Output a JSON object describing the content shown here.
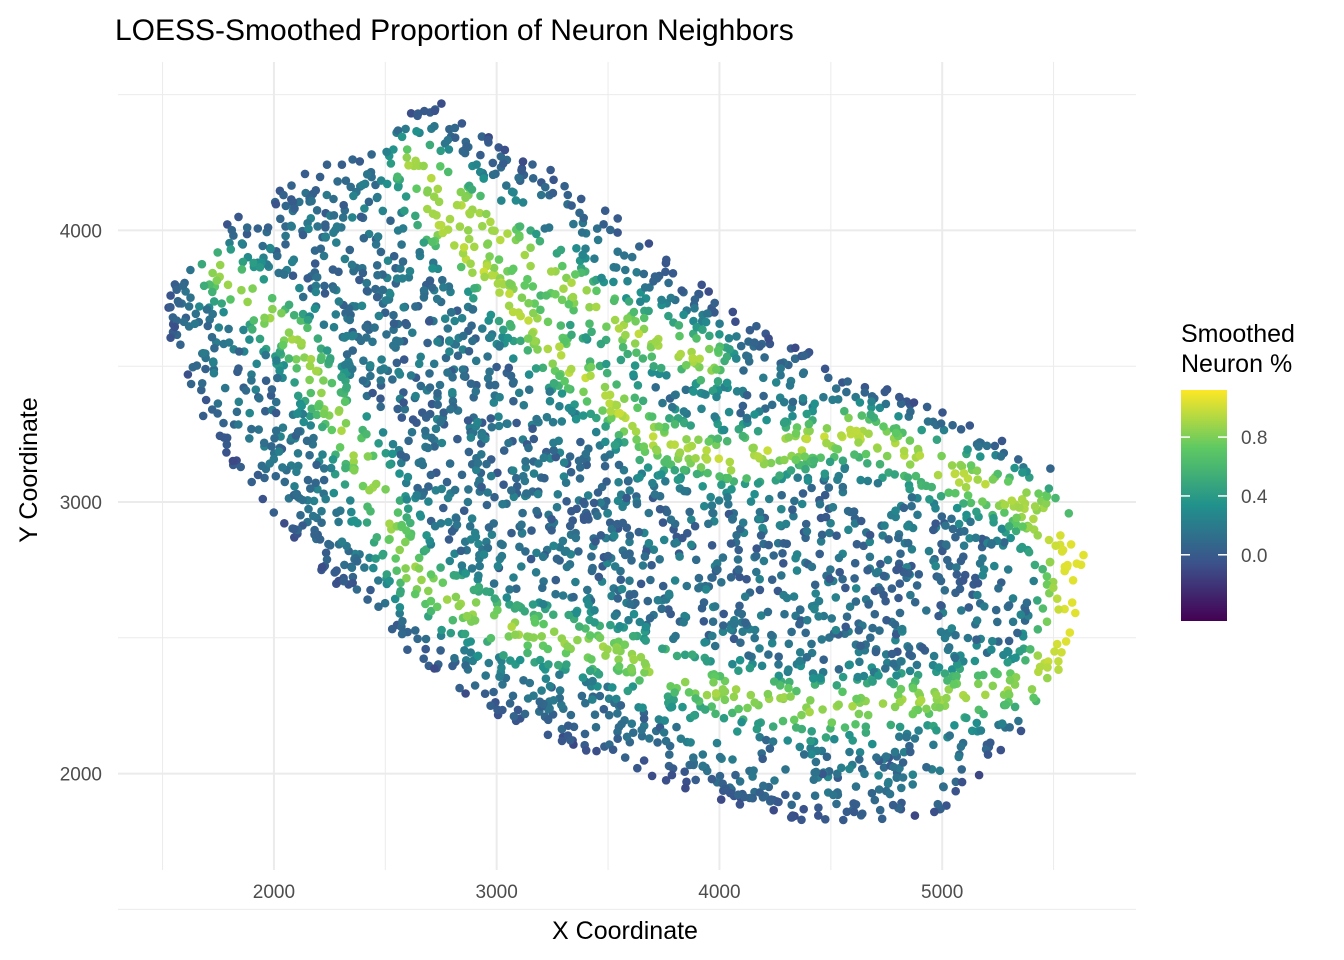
{
  "chart_data": {
    "type": "scatter",
    "title": "LOESS-Smoothed Proportion of Neuron Neighbors",
    "xlabel": "X Coordinate",
    "ylabel": "Y Coordinate",
    "xlim": [
      1300,
      5870
    ],
    "ylim": [
      1645,
      4620
    ],
    "x_ticks": [
      2000,
      3000,
      4000,
      5000
    ],
    "y_ticks": [
      2000,
      3000,
      4000
    ],
    "x_tick_labels": [
      "2000",
      "3000",
      "4000",
      "5000"
    ],
    "y_tick_labels": [
      "2000",
      "3000",
      "4000"
    ],
    "grid": true,
    "legend": {
      "title_line1": "Smoothed",
      "title_line2": "Neuron %",
      "placement": "right",
      "range": [
        -0.45,
        1.12
      ],
      "ticks": [
        0.0,
        0.4,
        0.8
      ],
      "tick_labels": [
        "0.0",
        "0.4",
        "0.8"
      ],
      "colormap": "viridis",
      "colors": [
        "#440154",
        "#3b528b",
        "#21918c",
        "#5ec962",
        "#fde725"
      ]
    },
    "color_encoding": "Smoothed Neuron % (LOESS)",
    "point_color_note": "dense tissue section; points colored by smoothed neuron proportion",
    "outline": [
      [
        1500,
        3770
      ],
      [
        1750,
        4000
      ],
      [
        2100,
        4200
      ],
      [
        2450,
        4350
      ],
      [
        2700,
        4500
      ],
      [
        2900,
        4380
      ],
      [
        3300,
        4200
      ],
      [
        3700,
        3950
      ],
      [
        4100,
        3680
      ],
      [
        4600,
        3470
      ],
      [
        5100,
        3300
      ],
      [
        5560,
        3100
      ],
      [
        5640,
        2800
      ],
      [
        5580,
        2450
      ],
      [
        5350,
        2150
      ],
      [
        5000,
        1850
      ],
      [
        4500,
        1800
      ],
      [
        4000,
        1900
      ],
      [
        3500,
        2050
      ],
      [
        3000,
        2200
      ],
      [
        2600,
        2450
      ],
      [
        2200,
        2750
      ],
      [
        1800,
        3150
      ],
      [
        1550,
        3500
      ]
    ],
    "bands": [
      {
        "name": "upper-band",
        "value": 0.92,
        "points": [
          [
            2620,
            4250
          ],
          [
            2800,
            4120
          ],
          [
            3200,
            3860
          ],
          [
            3600,
            3630
          ],
          [
            3950,
            3520
          ]
        ]
      },
      {
        "name": "middle-band",
        "value": 0.95,
        "points": [
          [
            2720,
            4050
          ],
          [
            3000,
            3800
          ],
          [
            3300,
            3520
          ],
          [
            3700,
            3230
          ],
          [
            4050,
            3150
          ],
          [
            4600,
            3260
          ],
          [
            5050,
            3100
          ],
          [
            5350,
            3000
          ],
          [
            5500,
            2920
          ]
        ]
      },
      {
        "name": "outer-band",
        "value": 0.88,
        "points": [
          [
            1750,
            3850
          ],
          [
            2100,
            3600
          ],
          [
            2450,
            3050
          ],
          [
            2650,
            2700
          ],
          [
            3000,
            2550
          ],
          [
            3500,
            2450
          ],
          [
            4000,
            2300
          ],
          [
            4500,
            2230
          ],
          [
            5000,
            2280
          ],
          [
            5400,
            2330
          ],
          [
            5560,
            2550
          ],
          [
            5580,
            2800
          ],
          [
            5420,
            2950
          ]
        ]
      }
    ],
    "edge_value": -0.05,
    "interior_value": 0.12,
    "right_edge_value": 1.05,
    "point_count": 3400
  }
}
